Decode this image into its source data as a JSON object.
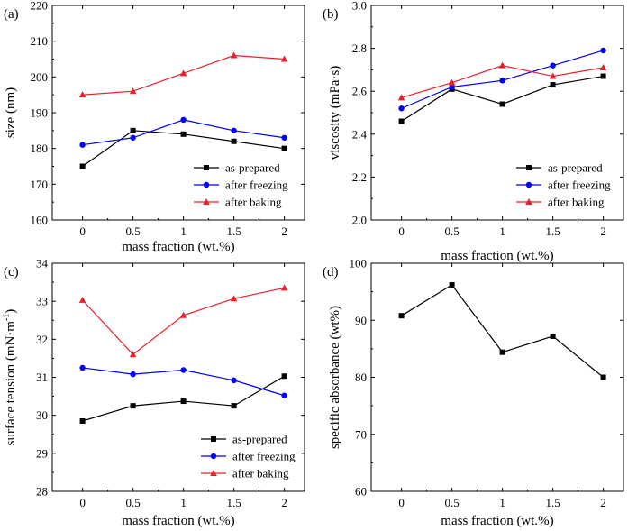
{
  "chart_data": [
    {
      "type": "line",
      "panel_label": "(a)",
      "xlabel": "mass fraction (wt.%)",
      "ylabel": "size (nm)",
      "x": [
        0,
        0.5,
        1,
        1.5,
        2
      ],
      "xticks": [
        "0",
        "0.5",
        "1",
        "1.5",
        "2"
      ],
      "xlim": [
        -0.3,
        2.2
      ],
      "ylim": [
        160,
        220
      ],
      "yticks": [
        "160",
        "170",
        "180",
        "190",
        "200",
        "210",
        "220"
      ],
      "legend_position": "lower-right",
      "series": [
        {
          "name": "as-prepared",
          "values": [
            175,
            185,
            184,
            182,
            180
          ],
          "color": "#000000",
          "marker": "square"
        },
        {
          "name": "after freezing",
          "values": [
            181,
            183,
            188,
            185,
            183
          ],
          "color": "#0000ff",
          "marker": "circle"
        },
        {
          "name": "after baking",
          "values": [
            195,
            196,
            201,
            206,
            205
          ],
          "color": "#e8202a",
          "marker": "triangle"
        }
      ]
    },
    {
      "type": "line",
      "panel_label": "(b)",
      "xlabel": "mass fraction (wt.%)",
      "ylabel": "viscosity (mPa·s)",
      "x": [
        0,
        0.5,
        1,
        1.5,
        2
      ],
      "xticks": [
        "0",
        "0.5",
        "1",
        "1.5",
        "2"
      ],
      "xlim": [
        -0.3,
        2.2
      ],
      "ylim": [
        2.0,
        3.0
      ],
      "yticks": [
        "2.0",
        "2.2",
        "2.4",
        "2.6",
        "2.8",
        "3.0"
      ],
      "legend_position": "lower-right",
      "series": [
        {
          "name": "as-prepared",
          "values": [
            2.46,
            2.61,
            2.54,
            2.63,
            2.67
          ],
          "color": "#000000",
          "marker": "square"
        },
        {
          "name": "after freezing",
          "values": [
            2.52,
            2.62,
            2.65,
            2.72,
            2.79
          ],
          "color": "#0000ff",
          "marker": "circle"
        },
        {
          "name": "after baking",
          "values": [
            2.57,
            2.64,
            2.72,
            2.67,
            2.71
          ],
          "color": "#e8202a",
          "marker": "triangle"
        }
      ]
    },
    {
      "type": "line",
      "panel_label": "(c)",
      "xlabel": "mass fraction (wt.%)",
      "ylabel": "surface tension (mN·m",
      "ylabel_sup": "-1",
      "ylabel_end": ")",
      "x": [
        0,
        0.5,
        1,
        1.5,
        2
      ],
      "xticks": [
        "0",
        "0.5",
        "1",
        "1.5",
        "2"
      ],
      "xlim": [
        -0.3,
        2.2
      ],
      "ylim": [
        28,
        34
      ],
      "yticks": [
        "28",
        "29",
        "30",
        "31",
        "32",
        "33",
        "34"
      ],
      "legend_position": "lower-right",
      "series": [
        {
          "name": "as-prepared",
          "values": [
            29.85,
            30.25,
            30.37,
            30.25,
            31.03
          ],
          "color": "#000000",
          "marker": "square"
        },
        {
          "name": "after freezing",
          "values": [
            31.25,
            31.08,
            31.19,
            30.92,
            30.52
          ],
          "color": "#0000ff",
          "marker": "circle"
        },
        {
          "name": "after baking",
          "values": [
            33.03,
            31.6,
            32.63,
            33.07,
            33.35
          ],
          "color": "#e8202a",
          "marker": "triangle"
        }
      ]
    },
    {
      "type": "line",
      "panel_label": "(d)",
      "xlabel": "mass fraction (wt.%)",
      "ylabel": "specific absorbance (wt%)",
      "x": [
        0,
        0.5,
        1,
        1.5,
        2
      ],
      "xticks": [
        "0",
        "0.5",
        "1",
        "1.5",
        "2"
      ],
      "xlim": [
        -0.3,
        2.2
      ],
      "ylim": [
        60,
        100
      ],
      "yticks": [
        "60",
        "70",
        "80",
        "90",
        "100"
      ],
      "series": [
        {
          "values": [
            90.8,
            96.2,
            84.4,
            87.2,
            80.0
          ],
          "color": "#000000",
          "marker": "square"
        }
      ]
    }
  ]
}
